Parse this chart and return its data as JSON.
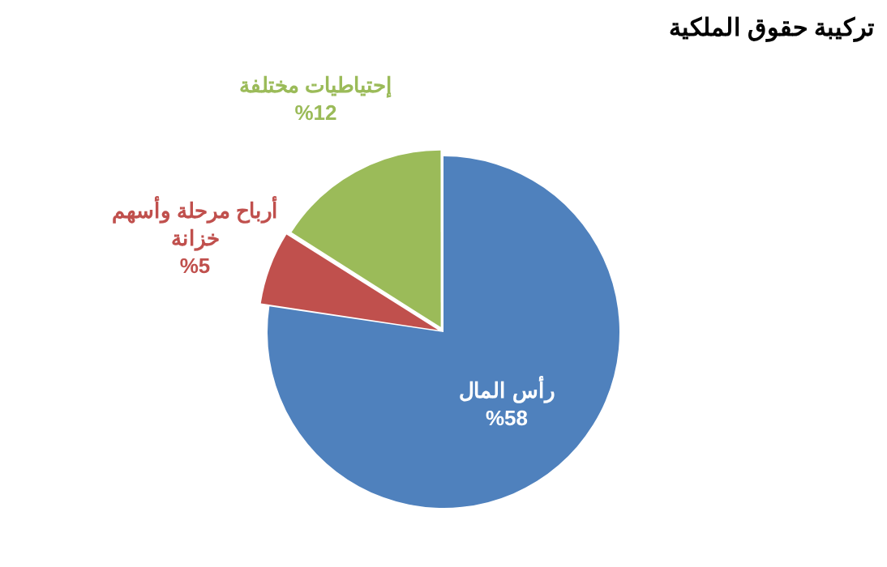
{
  "chart_data": {
    "type": "pie",
    "title": "تركيبة حقوق الملكية",
    "categories": [
      "رأس المال",
      "أرباح مرحلة وأسهم خزانة",
      "إحتياطيات مختلفة"
    ],
    "values": [
      58,
      5,
      12
    ],
    "value_labels": [
      "%58",
      "%5",
      "%12"
    ],
    "colors": [
      "#4f81bd",
      "#c0504d",
      "#9bbb59"
    ],
    "legend": false
  }
}
